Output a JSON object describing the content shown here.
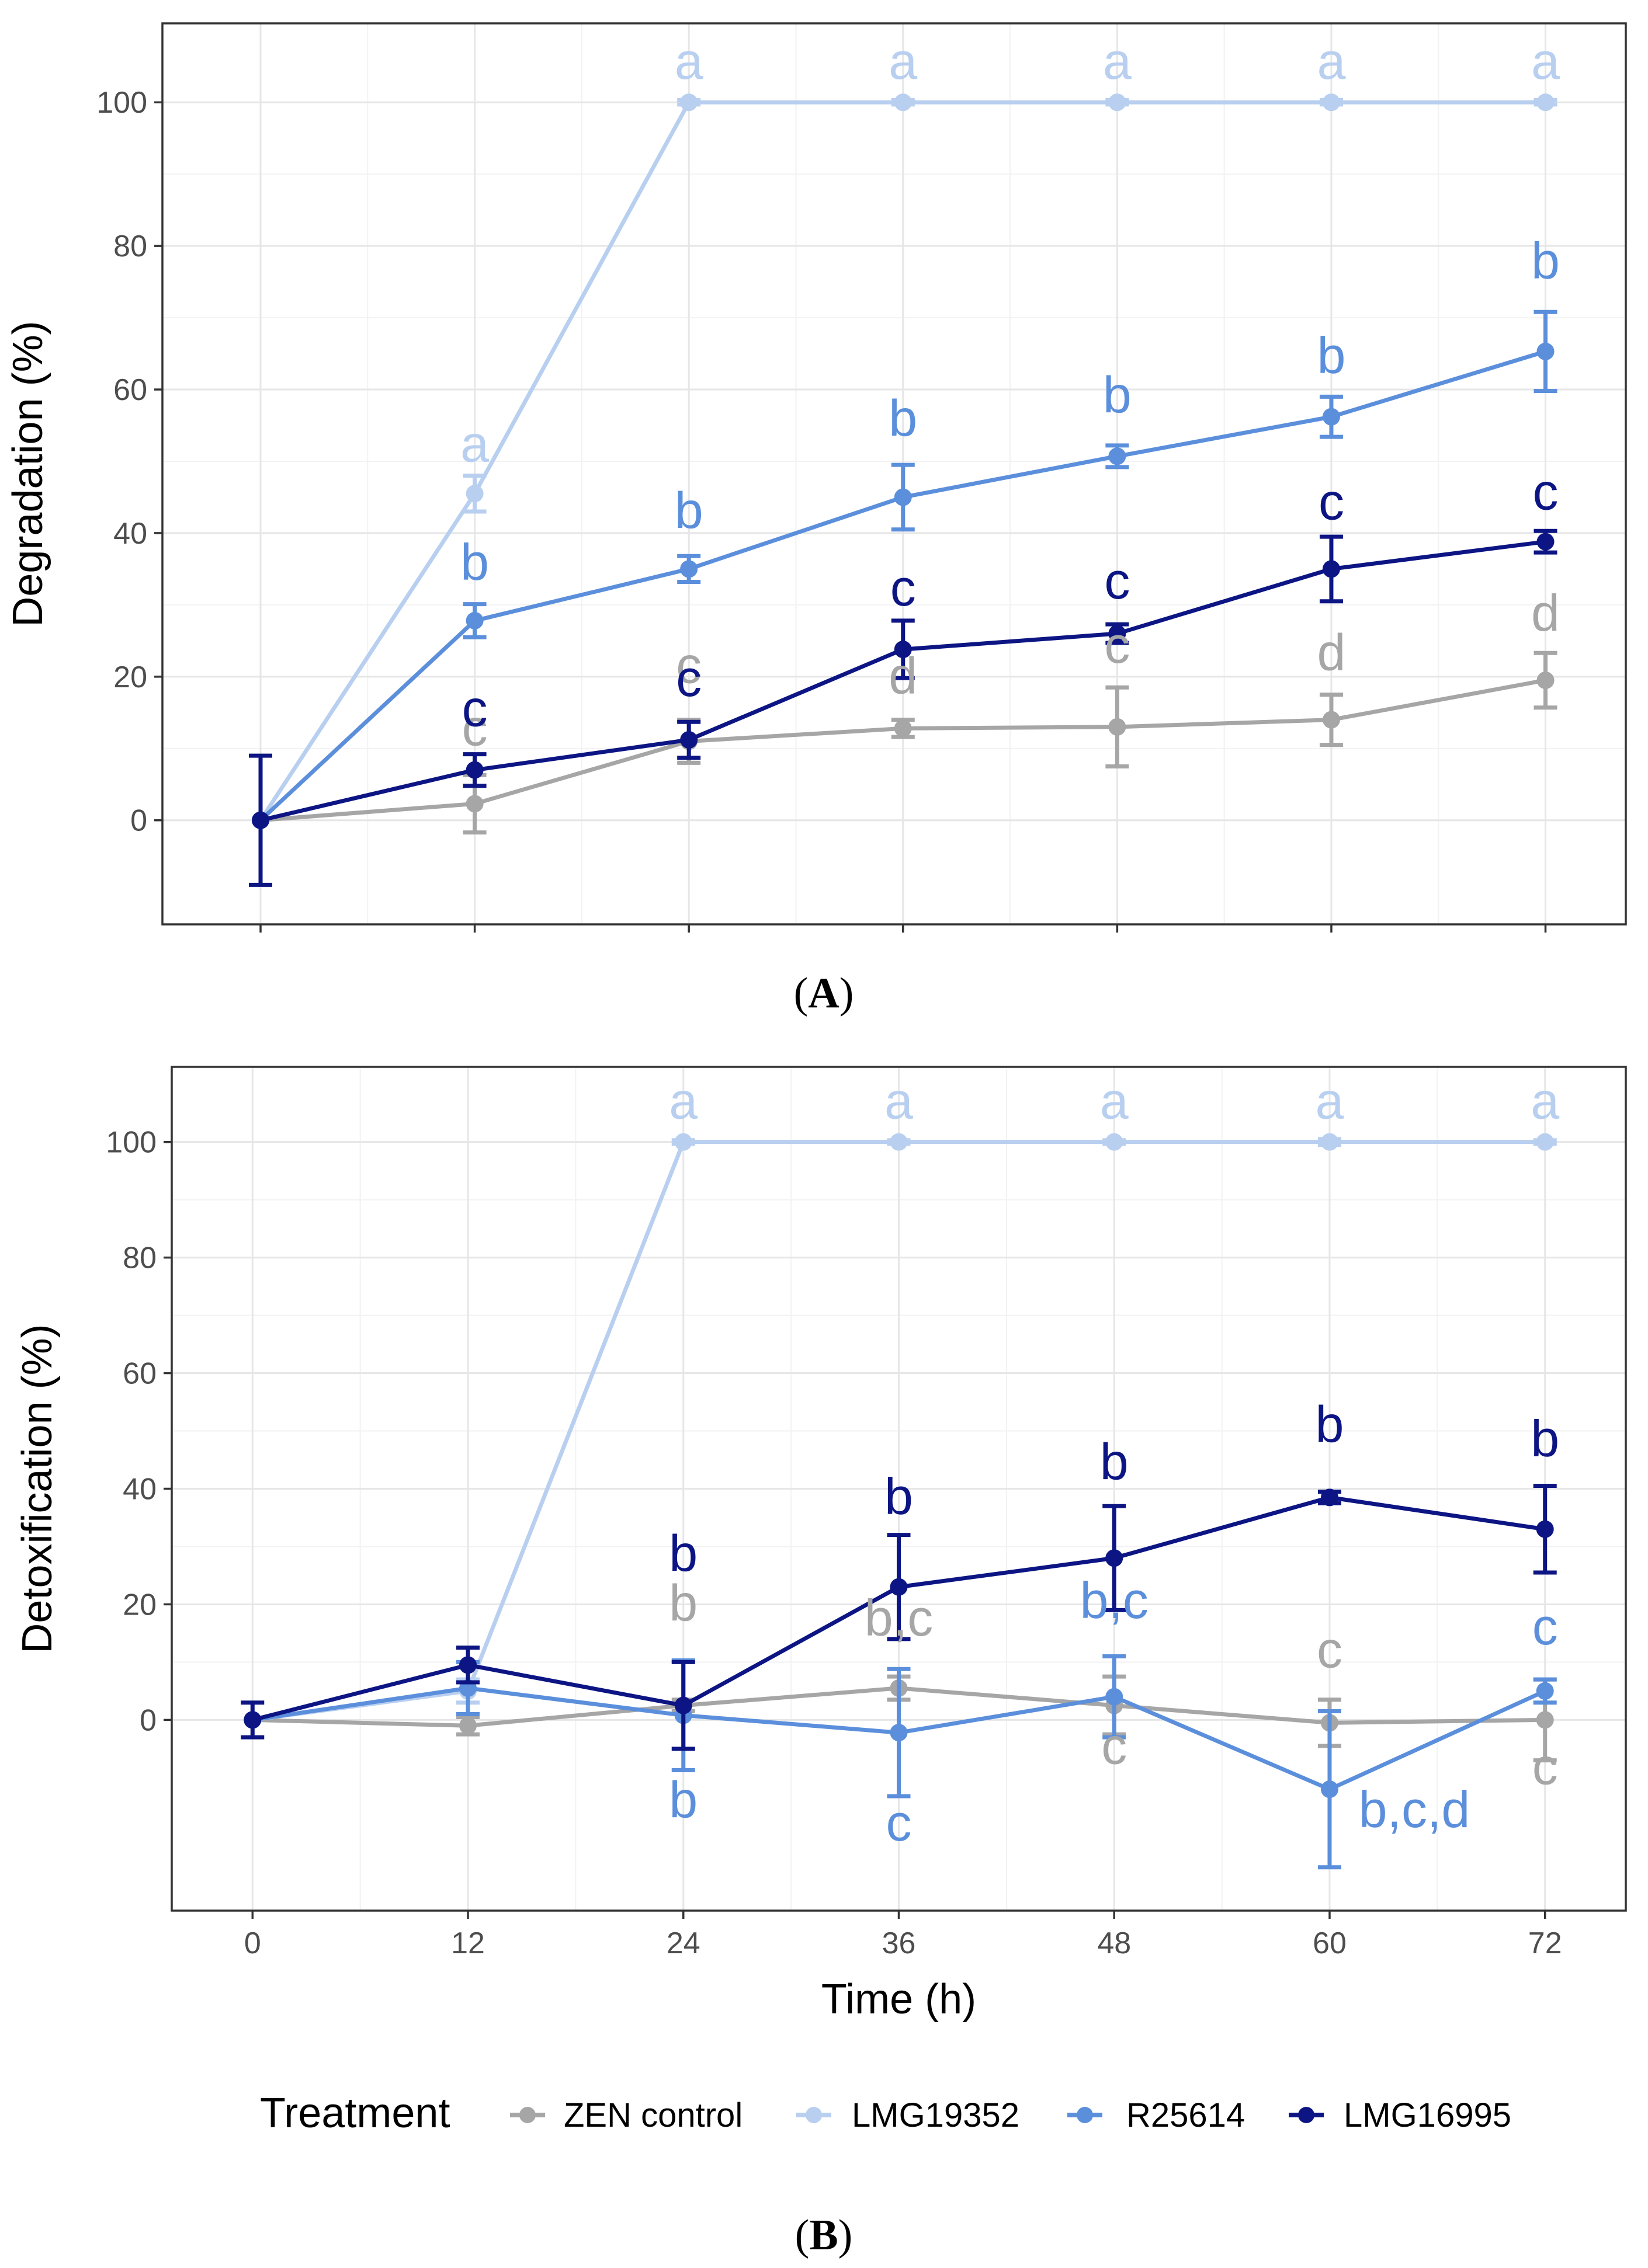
{
  "legend": {
    "title": "Treatment",
    "entries": [
      {
        "name": "ZEN control",
        "color": "#a6a6a6"
      },
      {
        "name": "LMG19352",
        "color": "#b8cff0"
      },
      {
        "name": "R25614",
        "color": "#5b8fdc"
      },
      {
        "name": "LMG16995",
        "color": "#0c1583"
      }
    ]
  },
  "panels": {
    "A": {
      "label": "(A)"
    },
    "B": {
      "label": "(B)"
    }
  },
  "chart_data": [
    {
      "type": "line",
      "panel": "A",
      "title": "",
      "xlabel": "",
      "ylabel": "Degradation (%)",
      "x": [
        0,
        12,
        24,
        36,
        48,
        60,
        72
      ],
      "xticks": [],
      "xlim": [
        -5.5,
        76.5
      ],
      "ylim": [
        -14.5,
        111
      ],
      "yticks": [
        0,
        20,
        40,
        60,
        80,
        100
      ],
      "grid": true,
      "series": [
        {
          "name": "ZEN control",
          "color": "#a6a6a6",
          "values": [
            0,
            2.3,
            11,
            12.8,
            13,
            14,
            19.5
          ],
          "errors": [
            0,
            4,
            3,
            1.2,
            5.5,
            3.5,
            3.8
          ],
          "letters": [
            "",
            "c",
            "c",
            "d",
            "c",
            "d",
            "d"
          ]
        },
        {
          "name": "LMG19352",
          "color": "#b8cff0",
          "values": [
            0,
            45.5,
            100,
            100,
            100,
            100,
            100
          ],
          "errors": [
            0,
            2.5,
            0.3,
            0.3,
            0.3,
            0.3,
            0.3
          ],
          "letters": [
            "",
            "a",
            "a",
            "a",
            "a",
            "a",
            "a"
          ]
        },
        {
          "name": "R25614",
          "color": "#5b8fdc",
          "values": [
            0,
            27.8,
            35,
            45,
            50.7,
            56.2,
            65.3
          ],
          "errors": [
            0,
            2.3,
            1.8,
            4.5,
            1.5,
            2.8,
            5.5
          ],
          "letters": [
            "",
            "b",
            "b",
            "b",
            "b",
            "b",
            "b"
          ]
        },
        {
          "name": "LMG16995",
          "color": "#0c1583",
          "values": [
            0,
            7,
            11.2,
            23.8,
            26,
            35,
            38.8
          ],
          "errors": [
            9,
            2.2,
            2.5,
            4,
            1.3,
            4.5,
            1.5
          ],
          "letters": [
            "",
            "c",
            "c",
            "c",
            "c",
            "c",
            "c"
          ]
        }
      ]
    },
    {
      "type": "line",
      "panel": "B",
      "title": "",
      "xlabel": "Time (h)",
      "ylabel": "Detoxification (%)",
      "x": [
        0,
        12,
        24,
        36,
        48,
        60,
        72
      ],
      "xticks": [
        0,
        12,
        24,
        36,
        48,
        60,
        72
      ],
      "xlim": [
        -4.5,
        76.5
      ],
      "ylim": [
        -33,
        113
      ],
      "yticks": [
        0,
        20,
        40,
        60,
        80,
        100
      ],
      "grid": true,
      "series": [
        {
          "name": "ZEN control",
          "color": "#a6a6a6",
          "values": [
            0,
            -1,
            2.5,
            5.5,
            2.5,
            -0.5,
            0
          ],
          "errors": [
            0,
            1.5,
            1,
            2,
            5,
            4,
            7
          ],
          "letters": [
            "",
            "",
            "b",
            "b,c",
            "c",
            "c",
            "c"
          ]
        },
        {
          "name": "LMG19352",
          "color": "#b8cff0",
          "values": [
            0,
            5,
            100,
            100,
            100,
            100,
            100
          ],
          "errors": [
            0,
            2,
            0.3,
            0.3,
            0.3,
            0.5,
            0.3
          ],
          "letters": [
            "",
            "",
            "a",
            "a",
            "a",
            "a",
            "a"
          ]
        },
        {
          "name": "R25614",
          "color": "#5b8fdc",
          "values": [
            0,
            5.5,
            0.8,
            -2.2,
            4,
            -12,
            5
          ],
          "errors": [
            0,
            4.5,
            9.5,
            11,
            7,
            13.5,
            2
          ],
          "letters": [
            "",
            "",
            "b",
            "c",
            "b,c",
            "b,c,d",
            "c"
          ]
        },
        {
          "name": "LMG16995",
          "color": "#0c1583",
          "values": [
            0,
            9.5,
            2.5,
            23,
            28,
            38.5,
            33
          ],
          "errors": [
            3,
            3,
            7.5,
            9,
            9,
            1,
            7.5
          ],
          "letters": [
            "",
            "",
            "b",
            "b",
            "b",
            "b",
            "b"
          ]
        }
      ]
    }
  ]
}
